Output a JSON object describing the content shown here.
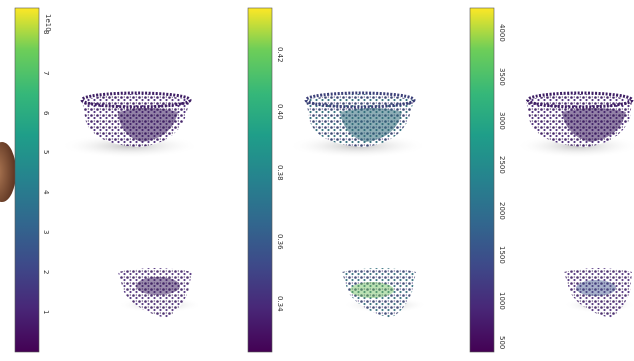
{
  "panels": [
    {
      "id": "panel-1",
      "multiplier": "1e10",
      "ticks": [
        "8",
        "7",
        "6",
        "5",
        "4",
        "3",
        "2",
        "1"
      ],
      "cloud_tint": "low"
    },
    {
      "id": "panel-2",
      "multiplier": "",
      "ticks": [
        "0.42",
        "0.40",
        "0.38",
        "0.36",
        "0.34"
      ],
      "cloud_tint": "mid"
    },
    {
      "id": "panel-3",
      "multiplier": "",
      "ticks": [
        "4000",
        "3500",
        "3000",
        "2500",
        "2000",
        "1500",
        "1000",
        "500"
      ],
      "cloud_tint": "low"
    }
  ],
  "colormap": "viridis",
  "colors": {
    "viridis_top": "#fde725",
    "viridis_mid": "#21918c",
    "viridis_bottom": "#440154",
    "point_dark": "#46206b",
    "point_mid": "#3b528b",
    "point_green": "#6bbf59"
  }
}
